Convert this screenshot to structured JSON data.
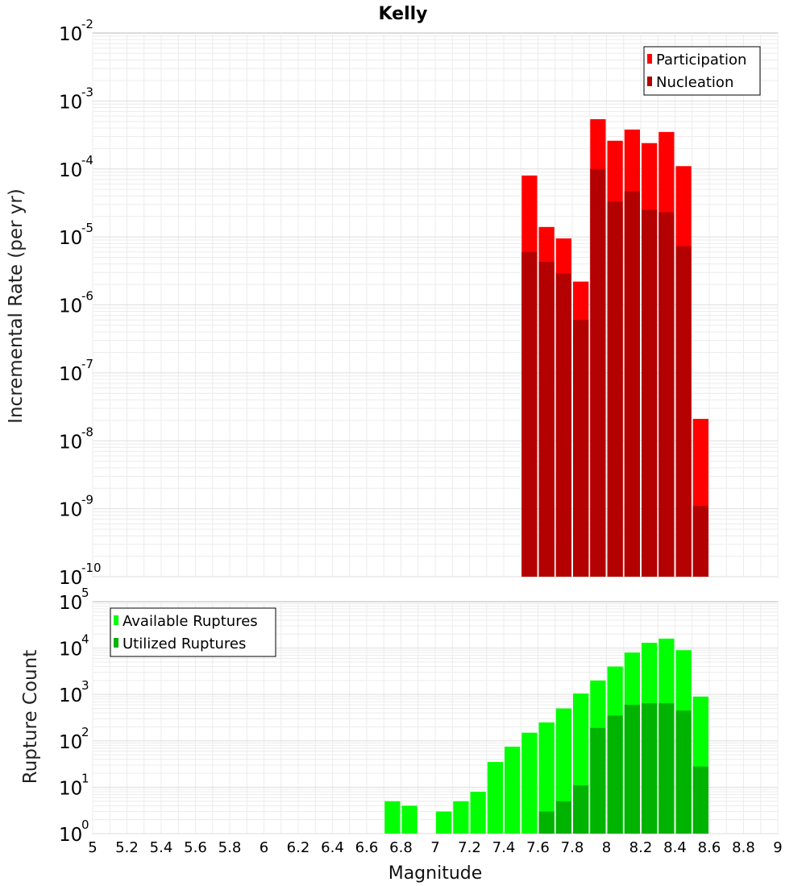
{
  "chart_data": [
    {
      "type": "bar",
      "panel": "top",
      "title": "Kelly",
      "xlabel": "",
      "ylabel": "Incremental Rate (per yr)",
      "yscale": "log",
      "ylim_exp": [
        -10,
        -2
      ],
      "xlim": [
        5,
        9
      ],
      "grid": true,
      "legend_placement": "top-right",
      "bar_width": 0.1,
      "colors": {
        "Participation": "#ff0000",
        "Nucleation": "#b30000"
      },
      "x": [
        7.55,
        7.65,
        7.75,
        7.85,
        7.95,
        8.05,
        8.15,
        8.25,
        8.35,
        8.45,
        8.55
      ],
      "series": [
        {
          "name": "Participation",
          "values": [
            8e-05,
            1.4e-05,
            9.5e-06,
            2.2e-06,
            0.00054,
            0.00026,
            0.00038,
            0.00024,
            0.00035,
            0.00011,
            2.1e-08
          ]
        },
        {
          "name": "Nucleation",
          "values": [
            6e-06,
            4.3e-06,
            2.9e-06,
            6e-07,
            0.0001,
            3.3e-05,
            4.7e-05,
            2.5e-05,
            2.3e-05,
            7.3e-06,
            1.1e-09
          ]
        }
      ]
    },
    {
      "type": "bar",
      "panel": "bottom",
      "xlabel": "Magnitude",
      "ylabel": "Rupture Count",
      "yscale": "log",
      "ylim_exp": [
        0,
        5
      ],
      "xlim": [
        5,
        9
      ],
      "grid": true,
      "legend_placement": "top-left",
      "bar_width": 0.1,
      "colors": {
        "Available Ruptures": "#00ff00",
        "Utilized Ruptures": "#00b300"
      },
      "x": [
        6.75,
        6.85,
        6.95,
        7.05,
        7.15,
        7.25,
        7.35,
        7.45,
        7.55,
        7.65,
        7.75,
        7.85,
        7.95,
        8.05,
        8.15,
        8.25,
        8.35,
        8.45,
        8.55
      ],
      "series": [
        {
          "name": "Available Ruptures",
          "values": [
            5,
            4,
            0,
            3,
            5,
            8,
            35,
            75,
            150,
            250,
            500,
            1050,
            2000,
            4000,
            8000,
            13000,
            16000,
            9000,
            900
          ]
        },
        {
          "name": "Utilized Ruptures",
          "values": [
            0,
            0,
            0,
            0,
            0,
            0,
            0,
            0,
            1,
            3,
            5,
            11,
            190,
            350,
            600,
            650,
            650,
            450,
            28
          ]
        }
      ],
      "xticks": [
        "5",
        "5.2",
        "5.4",
        "5.6",
        "5.8",
        "6",
        "6.2",
        "6.4",
        "6.6",
        "6.8",
        "7",
        "7.2",
        "7.4",
        "7.6",
        "7.8",
        "8",
        "8.2",
        "8.4",
        "8.6",
        "8.8",
        "9"
      ]
    }
  ]
}
